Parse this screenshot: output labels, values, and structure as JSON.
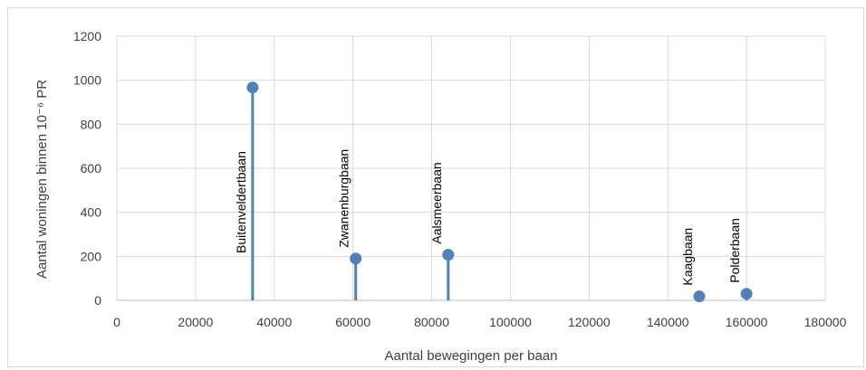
{
  "chart_data": {
    "type": "scatter",
    "title": "",
    "xlabel": "Aantal bewegingen per baan",
    "ylabel": "Aantal woningen binnen 10⁻⁶ PR",
    "xlim": [
      0,
      180000
    ],
    "ylim": [
      0,
      1200
    ],
    "xticks": [
      0,
      20000,
      40000,
      60000,
      80000,
      100000,
      120000,
      140000,
      160000,
      180000
    ],
    "yticks": [
      0,
      200,
      400,
      600,
      800,
      1000,
      1200
    ],
    "grid": true,
    "legend": "none",
    "marker_color": "#4f81bd",
    "points": [
      {
        "label": "Buitenveldertbaan",
        "x": 34500,
        "y": 967
      },
      {
        "label": "Zwanenburgbaan",
        "x": 60700,
        "y": 190
      },
      {
        "label": "Aalsmeerbaan",
        "x": 84200,
        "y": 207
      },
      {
        "label": "Kaagbaan",
        "x": 148000,
        "y": 18
      },
      {
        "label": "Polderbaan",
        "x": 160000,
        "y": 30
      }
    ]
  }
}
